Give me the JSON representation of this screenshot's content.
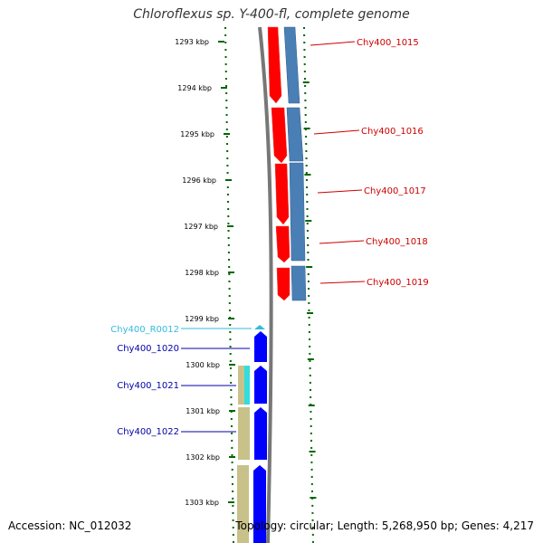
{
  "title": "Chloroflexus sp. Y-400-fl, complete genome",
  "footer": {
    "accession": "Accession: NC_012032",
    "summary": "Topology: circular; Length: 5,268,950 bp; Genes: 4,217"
  },
  "ticks": [
    "1293 kbp",
    "1294 kbp",
    "1295 kbp",
    "1296 kbp",
    "1297 kbp",
    "1298 kbp",
    "1299 kbp",
    "1300 kbp",
    "1301 kbp",
    "1302 kbp",
    "1303 kbp"
  ],
  "labels": [
    {
      "text": "Chy400_1015",
      "color": "#cc0000"
    },
    {
      "text": "Chy400_1016",
      "color": "#cc0000"
    },
    {
      "text": "Chy400_1017",
      "color": "#cc0000"
    },
    {
      "text": "Chy400_1018",
      "color": "#cc0000"
    },
    {
      "text": "Chy400_1019",
      "color": "#cc0000"
    },
    {
      "text": "Chy400_R0012",
      "color": "#33bbdd"
    },
    {
      "text": "Chy400_1020",
      "color": "#0000aa"
    },
    {
      "text": "Chy400_1021",
      "color": "#0000aa"
    },
    {
      "text": "Chy400_1022",
      "color": "#0000aa"
    }
  ],
  "colors": {
    "forward_cds": "#ff0000",
    "reverse_cds": "#4a7fb5",
    "cds_blue": "#0000ff",
    "rna": "#33dddd",
    "khaki": "#c8c28a",
    "backbone": "#777777",
    "tick": "#006600"
  }
}
